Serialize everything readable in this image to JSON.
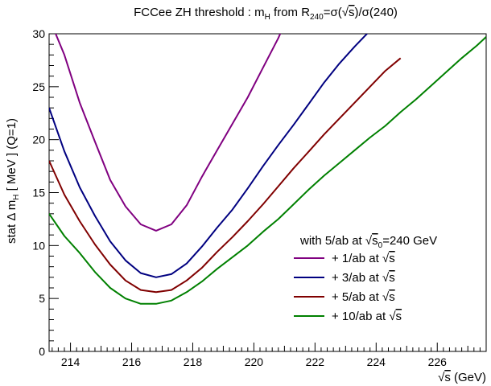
{
  "chart_data": {
    "type": "line",
    "title": {
      "prefix": "FCCee ZH threshold : m",
      "sub_h": "H",
      "mid": " from R",
      "sub_240": "240",
      "eq_sigma_open": "=σ(",
      "sqrt_s": "s",
      "eq_close": ")/σ(240)"
    },
    "ylabel": {
      "pre": "stat Δ m",
      "sub": "H",
      "post": " [ MeV ]   (Q=1)"
    },
    "xlabel": {
      "sqrt_s": "s",
      "unit": " (GeV)"
    },
    "xlim": [
      213.3,
      227.6
    ],
    "ylim": [
      0,
      30
    ],
    "x_ticks": [
      214,
      216,
      218,
      220,
      222,
      224,
      226
    ],
    "y_ticks": [
      0,
      5,
      10,
      15,
      20,
      25,
      30
    ],
    "legend": {
      "header": {
        "pre": "with 5/ab at ",
        "s": "s",
        "sub0": "0",
        "post": "=240 GeV"
      },
      "placement": "right"
    },
    "series": [
      {
        "name": "+ 1/ab at √s",
        "label_pre": "+ 1/ab at ",
        "label_s": "s",
        "color": "#800080",
        "x": [
          213.3,
          213.8,
          214.3,
          214.8,
          215.3,
          215.8,
          216.3,
          216.8,
          217.3,
          217.8,
          218.3,
          218.8,
          219.3,
          219.8,
          220.3,
          220.8,
          221.0
        ],
        "y": [
          31.5,
          28.0,
          23.5,
          19.8,
          16.2,
          13.7,
          12.0,
          11.4,
          12.0,
          13.8,
          16.5,
          19.0,
          21.5,
          24.0,
          26.8,
          29.6,
          30.9
        ]
      },
      {
        "name": "+ 3/ab at √s",
        "label_pre": "+ 3/ab at ",
        "label_s": "s",
        "color": "#000080",
        "x": [
          213.3,
          213.8,
          214.3,
          214.8,
          215.3,
          215.8,
          216.3,
          216.8,
          217.3,
          217.8,
          218.3,
          218.8,
          219.3,
          219.8,
          220.3,
          220.8,
          221.3,
          221.8,
          222.3,
          222.8,
          223.3,
          223.8,
          224.3
        ],
        "y": [
          23.0,
          18.9,
          15.5,
          12.8,
          10.4,
          8.6,
          7.4,
          7.0,
          7.3,
          8.3,
          9.9,
          11.7,
          13.4,
          15.4,
          17.5,
          19.5,
          21.4,
          23.4,
          25.4,
          27.2,
          28.8,
          30.3,
          31.2
        ]
      },
      {
        "name": "+ 5/ab at √s",
        "label_pre": "+ 5/ab at ",
        "label_s": "s",
        "color": "#800000",
        "x": [
          213.3,
          213.8,
          214.3,
          214.8,
          215.3,
          215.8,
          216.3,
          216.8,
          217.3,
          217.8,
          218.3,
          218.8,
          219.3,
          219.8,
          220.3,
          220.8,
          221.3,
          221.8,
          222.3,
          222.8,
          223.3,
          223.8,
          224.3,
          224.8
        ],
        "y": [
          18.0,
          14.8,
          12.3,
          10.1,
          8.2,
          6.7,
          5.8,
          5.6,
          5.8,
          6.7,
          7.9,
          9.4,
          10.8,
          12.3,
          13.9,
          15.6,
          17.3,
          18.9,
          20.5,
          22.0,
          23.5,
          25.0,
          26.5,
          27.7
        ]
      },
      {
        "name": "+ 10/ab at √s",
        "label_pre": "+ 10/ab at ",
        "label_s": "s",
        "color": "#008000",
        "x": [
          213.3,
          213.8,
          214.3,
          214.8,
          215.3,
          215.8,
          216.3,
          216.8,
          217.3,
          217.8,
          218.3,
          218.8,
          219.3,
          219.8,
          220.3,
          220.8,
          221.3,
          221.8,
          222.3,
          222.8,
          223.3,
          223.8,
          224.3,
          224.8,
          225.3,
          225.8,
          226.3,
          226.8,
          227.3,
          227.6
        ],
        "y": [
          13.0,
          10.9,
          9.3,
          7.5,
          6.0,
          5.0,
          4.5,
          4.5,
          4.8,
          5.6,
          6.6,
          7.8,
          8.9,
          10.0,
          11.3,
          12.5,
          13.9,
          15.3,
          16.6,
          17.8,
          19.0,
          20.2,
          21.3,
          22.6,
          23.8,
          25.1,
          26.4,
          27.7,
          28.9,
          29.7
        ]
      }
    ]
  }
}
